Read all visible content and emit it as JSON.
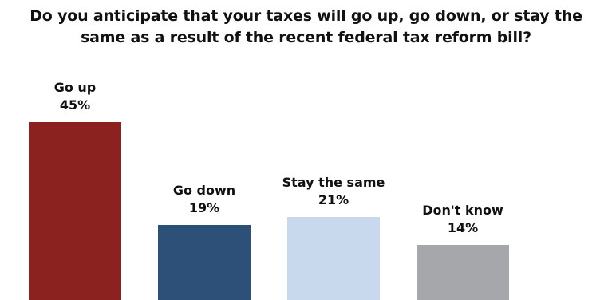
{
  "title_lines": [
    "Do you anticipate that your taxes will go up, go down, or stay the",
    "same as a result of the recent federal tax reform bill?"
  ],
  "chart_data": {
    "type": "bar",
    "title": "Do you anticipate that your taxes will go up, go down, or stay the same as a result of the recent federal tax reform bill?",
    "categories": [
      "Go up",
      "Go down",
      "Stay the same",
      "Don't know"
    ],
    "values": [
      45,
      19,
      21,
      14
    ],
    "value_labels": [
      "45%",
      "19%",
      "21%",
      "14%"
    ],
    "unit": "%",
    "colors": [
      "#8B2220",
      "#2C5077",
      "#C8D9EE",
      "#A6A7AB"
    ],
    "xlabel": "",
    "ylabel": "",
    "grid": false,
    "legend": "none",
    "ylim": [
      0,
      45
    ]
  }
}
